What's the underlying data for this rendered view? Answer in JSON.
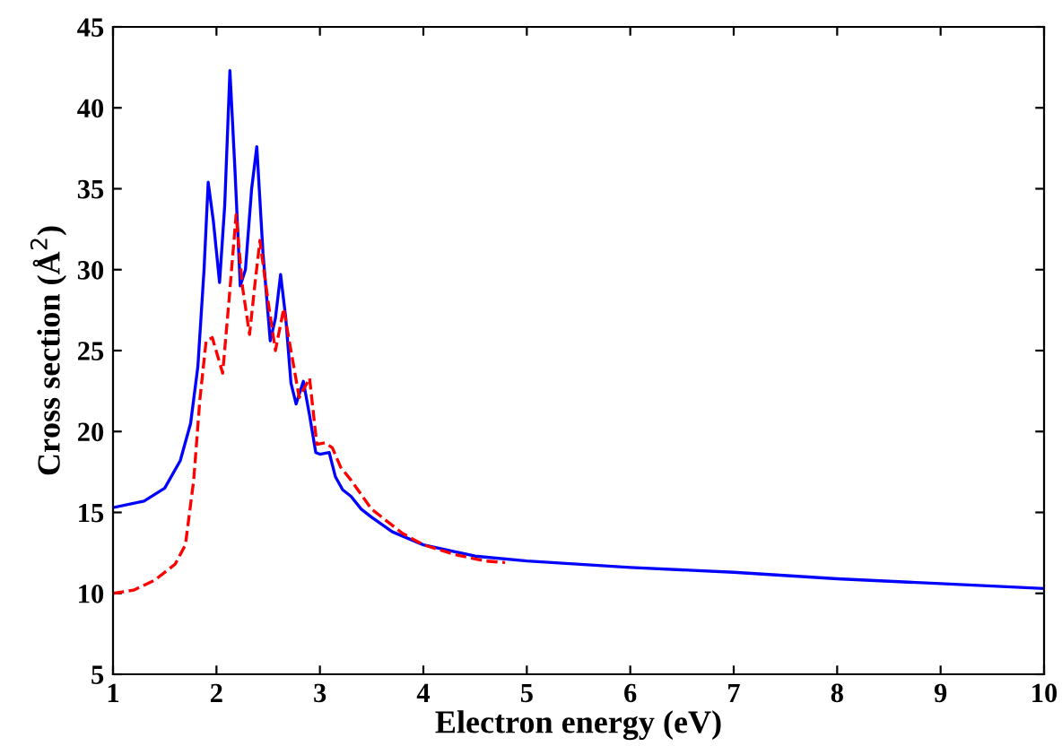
{
  "chart_data": {
    "type": "line",
    "xlabel": "Electron energy (eV)",
    "ylabel": "Cross section (Å$^{2}$)",
    "xlim": [
      1,
      10
    ],
    "ylim": [
      5,
      45
    ],
    "xticks": [
      1,
      2,
      3,
      4,
      5,
      6,
      7,
      8,
      9,
      10
    ],
    "yticks": [
      5,
      10,
      15,
      20,
      25,
      30,
      35,
      40,
      45
    ],
    "grid": false,
    "legend": false,
    "series": [
      {
        "color": "#0000ff",
        "line_style": "solid",
        "x": [
          1.0,
          1.3,
          1.5,
          1.65,
          1.75,
          1.82,
          1.88,
          1.92,
          1.97,
          2.03,
          2.08,
          2.13,
          2.18,
          2.23,
          2.28,
          2.34,
          2.39,
          2.45,
          2.52,
          2.57,
          2.62,
          2.67,
          2.72,
          2.77,
          2.84,
          2.9,
          2.96,
          3.0,
          3.09,
          3.15,
          3.22,
          3.3,
          3.4,
          3.5,
          3.7,
          4.0,
          4.5,
          5,
          6,
          7,
          8,
          9,
          10
        ],
        "values": [
          15.3,
          15.7,
          16.5,
          18.2,
          20.5,
          24,
          30,
          35.4,
          33,
          29.2,
          34,
          42.3,
          36,
          29.0,
          30,
          35,
          37.6,
          31,
          25.6,
          27,
          29.7,
          27,
          23,
          21.7,
          23.1,
          21,
          18.7,
          18.6,
          18.7,
          17.2,
          16.4,
          16.0,
          15.2,
          14.7,
          13.8,
          13.0,
          12.3,
          12.0,
          11.6,
          11.3,
          10.9,
          10.6,
          10.3
        ]
      },
      {
        "color": "#ff0000",
        "line_style": "dashed",
        "x": [
          1.0,
          1.2,
          1.4,
          1.6,
          1.7,
          1.78,
          1.84,
          1.9,
          1.96,
          2.06,
          2.12,
          2.19,
          2.25,
          2.32,
          2.37,
          2.42,
          2.5,
          2.57,
          2.65,
          2.72,
          2.8,
          2.9,
          2.97,
          3.05,
          3.12,
          3.2,
          3.3,
          3.5,
          3.8,
          4.0,
          4.3,
          4.6,
          4.79
        ],
        "values": [
          10.0,
          10.2,
          10.8,
          11.8,
          13,
          17,
          22,
          25.6,
          25.8,
          23.6,
          28,
          33.4,
          29,
          26.0,
          29,
          31.8,
          28,
          25.0,
          27.6,
          25,
          22.1,
          23.3,
          19.2,
          19.3,
          19.0,
          17.8,
          17.0,
          15.2,
          13.7,
          13.0,
          12.4,
          12.0,
          11.9
        ]
      }
    ]
  }
}
